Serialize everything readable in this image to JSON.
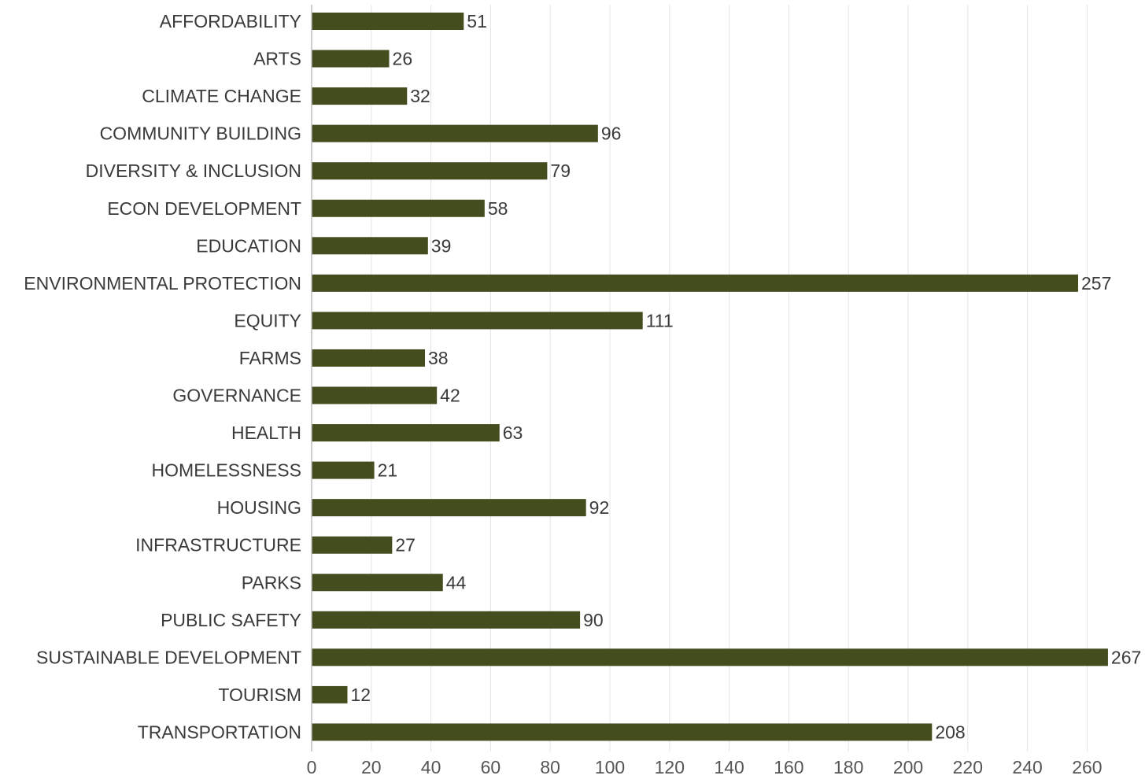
{
  "chart_data": {
    "type": "bar",
    "orientation": "horizontal",
    "categories": [
      "AFFORDABILITY",
      "ARTS",
      "CLIMATE CHANGE",
      "COMMUNITY BUILDING",
      "DIVERSITY & INCLUSION",
      "ECON DEVELOPMENT",
      "EDUCATION",
      "ENVIRONMENTAL PROTECTION",
      "EQUITY",
      "FARMS",
      "GOVERNANCE",
      "HEALTH",
      "HOMELESSNESS",
      "HOUSING",
      "INFRASTRUCTURE",
      "PARKS",
      "PUBLIC SAFETY",
      "SUSTAINABLE DEVELOPMENT",
      "TOURISM",
      "TRANSPORTATION"
    ],
    "values": [
      51,
      26,
      32,
      96,
      79,
      58,
      39,
      257,
      111,
      38,
      42,
      63,
      21,
      92,
      27,
      44,
      90,
      267,
      12,
      208
    ],
    "x_ticks": [
      0,
      20,
      40,
      60,
      80,
      100,
      120,
      140,
      160,
      180,
      200,
      220,
      240,
      260
    ],
    "xlim": [
      0,
      280
    ],
    "grid": "vertical",
    "bar_color": "#434d1e",
    "data_labels": true,
    "title": "",
    "xlabel": "",
    "ylabel": ""
  }
}
